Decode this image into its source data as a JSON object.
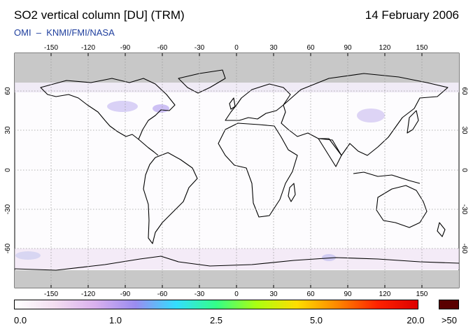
{
  "title": "SO2 vertical column [DU] (TRM)",
  "date": "14 February 2006",
  "credit": "OMI  –  KNMI/FMI/NASA",
  "lon_ticks": [
    "-150",
    "-120",
    "-90",
    "-60",
    "-30",
    "0",
    "30",
    "60",
    "90",
    "120",
    "150"
  ],
  "lat_ticks": [
    "60",
    "30",
    "0",
    "-30",
    "-60"
  ],
  "colorbar": {
    "labels": [
      "0.0",
      "1.0",
      "2.5",
      "5.0",
      "20.0"
    ],
    "over_label": ">50",
    "stops": [
      "#ffffff",
      "#f3ddf0",
      "#d9b0ee",
      "#9a8cf0",
      "#33ddff",
      "#33ff88",
      "#aaff11",
      "#ffdd00",
      "#ff8800",
      "#ff2200",
      "#dd0000"
    ],
    "over_color": "#5a0000"
  },
  "colors": {
    "land_outline": "#000000",
    "no_data": "#c8c8c8",
    "grid": "#9a9a9a"
  }
}
